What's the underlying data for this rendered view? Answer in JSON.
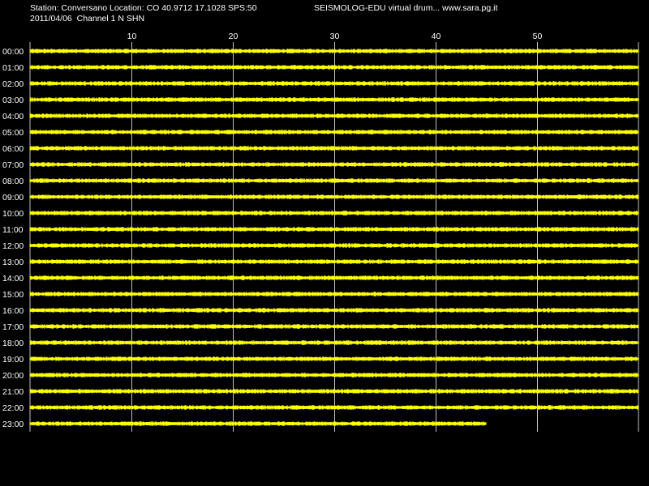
{
  "header": {
    "station_line": "Station: Conversano Location: CO 40.9712 17.1028 SPS:50",
    "app_line": "SEISMOLOG-EDU virtual drum... www.sara.pg.it",
    "date_line": "2011/04/06  Channel 1 N SHN"
  },
  "drum": {
    "minute_ticks": [
      "10",
      "20",
      "30",
      "40",
      "50"
    ],
    "hours": [
      "00:00",
      "01:00",
      "02:00",
      "03:00",
      "04:00",
      "05:00",
      "06:00",
      "07:00",
      "08:00",
      "09:00",
      "10:00",
      "11:00",
      "12:00",
      "13:00",
      "14:00",
      "15:00",
      "16:00",
      "17:00",
      "18:00",
      "19:00",
      "20:00",
      "21:00",
      "22:00",
      "23:00"
    ],
    "minutes_per_row": 60,
    "last_row_progress_minutes": 45,
    "colors": {
      "background": "#000000",
      "grid": "#c0c0c0",
      "trace": "#ffff00",
      "text": "#ffffff"
    }
  }
}
